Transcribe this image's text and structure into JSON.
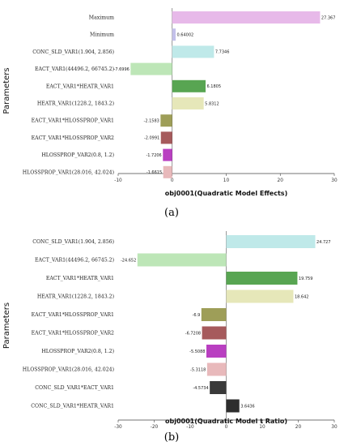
{
  "chart_data": [
    {
      "type": "bar",
      "orientation": "horizontal",
      "panel_label": "(a)",
      "xlabel": "obj0001(Quadratic Model Effects)",
      "ylabel": "Parameters",
      "xlim": [
        -10,
        30
      ],
      "xticks": [
        -10,
        0,
        10,
        20,
        30
      ],
      "grid": false,
      "categories": [
        "Maximum",
        "Minimum",
        "CONC_SLD_VAR1(1.904, 2.856)",
        "EACT_VAR1(44496.2, 66745.2)",
        "EACT_VAR1*HEATR_VAR1",
        "HEATR_VAR1(1228.2, 1843.2)",
        "EACT_VAR1*HLOSSPROP_VAR1",
        "EACT_VAR1*HLOSSPROP_VAR2",
        "HLOSSPROP_VAR2(0.8, 1.2)",
        "HLOSSPROP_VAR1(28.016, 42.024)"
      ],
      "values": [
        27.367,
        0.64002,
        7.7346,
        -7.6996,
        6.1805,
        5.8312,
        -2.1583,
        -2.0991,
        -1.7206,
        -1.6615
      ],
      "value_labels": [
        "27.367",
        "0.64002",
        "7.7346",
        "-7.6996",
        "6.1805",
        "5.8312",
        "-2.1583",
        "-2.0991",
        "-1.7206",
        "-1.6615"
      ],
      "colors": [
        "#e7b9e9",
        "#c3c0ea",
        "#bfe9e9",
        "#bde6b7",
        "#58a552",
        "#e6e7b9",
        "#9e9e58",
        "#a65a5c",
        "#b93fc1",
        "#e8b9bb"
      ]
    },
    {
      "type": "bar",
      "orientation": "horizontal",
      "panel_label": "(b)",
      "xlabel": "obj0001(Quadratic Model t Ratio)",
      "ylabel": "Parameters",
      "xlim": [
        -30,
        30
      ],
      "xticks": [
        -30,
        -20,
        -10,
        0,
        10,
        20,
        30
      ],
      "grid": false,
      "categories": [
        "CONC_SLD_VAR1(1.904, 2.856)",
        "EACT_VAR1(44496.2, 66745.2)",
        "EACT_VAR1*HEATR_VAR1",
        "HEATR_VAR1(1228.2, 1843.2)",
        "EACT_VAR1*HLOSSPROP_VAR1",
        "EACT_VAR1*HLOSSPROP_VAR2",
        "HLOSSPROP_VAR2(0.8, 1.2)",
        "HLOSSPROP_VAR1(28.016, 42.024)",
        "CONC_SLD_VAR1*EACT_VAR1",
        "CONC_SLD_VAR1*HEATR_VAR1"
      ],
      "values": [
        24.727,
        -24.652,
        19.759,
        18.642,
        -6.9,
        -6.7208,
        -5.5088,
        -5.3118,
        -4.5734,
        3.6436
      ],
      "value_labels": [
        "24.727",
        "-24.652",
        "19.759",
        "18.642",
        "-6.9",
        "-6.7208",
        "-5.5088",
        "-5.3118",
        "-4.5734",
        "3.6436"
      ],
      "colors": [
        "#bfe9e9",
        "#bde6b7",
        "#58a552",
        "#e6e7b9",
        "#9e9e58",
        "#a65a5c",
        "#b93fc1",
        "#e8b9bb",
        "#3a3a3a",
        "#2d2d2d"
      ]
    }
  ]
}
